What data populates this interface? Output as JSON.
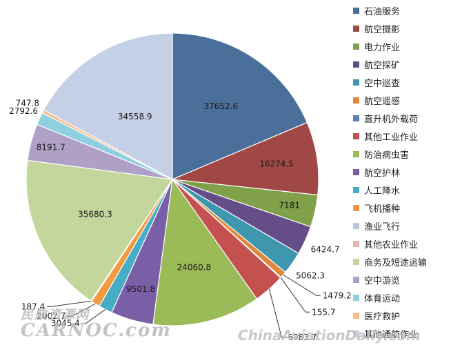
{
  "chart_data": {
    "type": "pie",
    "categories": [
      "石油服务",
      "航空摄影",
      "电力作业",
      "航空探矿",
      "空中巡查",
      "航空遥感",
      "直升机外载荷",
      "其他工业作业",
      "防治病虫害",
      "航空护林",
      "人工降水",
      "飞机播种",
      "渔业飞行",
      "其他农业作业",
      "商务及短途运输",
      "空中游览",
      "体育运动",
      "医疗救护",
      "其他通航作业"
    ],
    "values": [
      37652.6,
      16274.5,
      7181,
      6424.7,
      5062.3,
      1479.2,
      155.7,
      6983.7,
      24060.8,
      9501.8,
      3045.4,
      2002.7,
      187.4,
      0,
      35680.3,
      8191.7,
      2792.6,
      747.8,
      34558.9
    ],
    "data_labels": [
      "37652.6",
      "16274.5",
      "7181",
      "6424.7",
      "5062.3",
      "1479.2",
      "155.7",
      "6983.7",
      "24060.8",
      "9501.8",
      "3045.4",
      "2002.7",
      "187.4",
      "",
      "35680.3",
      "8191.7",
      "2792.6",
      "747.8",
      "34558.9"
    ],
    "colors": [
      "#4a6f9b",
      "#a04845",
      "#80a04a",
      "#654d8a",
      "#3e97ad",
      "#e0883a",
      "#5a82b6",
      "#c4504f",
      "#9bbb59",
      "#7a5fa6",
      "#47acc5",
      "#f29a3f",
      "#b7c6dc",
      "#e0b6b5",
      "#c3d69b",
      "#b0a0c8",
      "#8fcfe0",
      "#f9be8c",
      "#c5d0e6"
    ],
    "legend_position": "right"
  },
  "watermarks": {
    "left_top": "民航资源网",
    "left_bottom": "CARNOC.com",
    "right": "ChinaAviationDaily.com"
  }
}
